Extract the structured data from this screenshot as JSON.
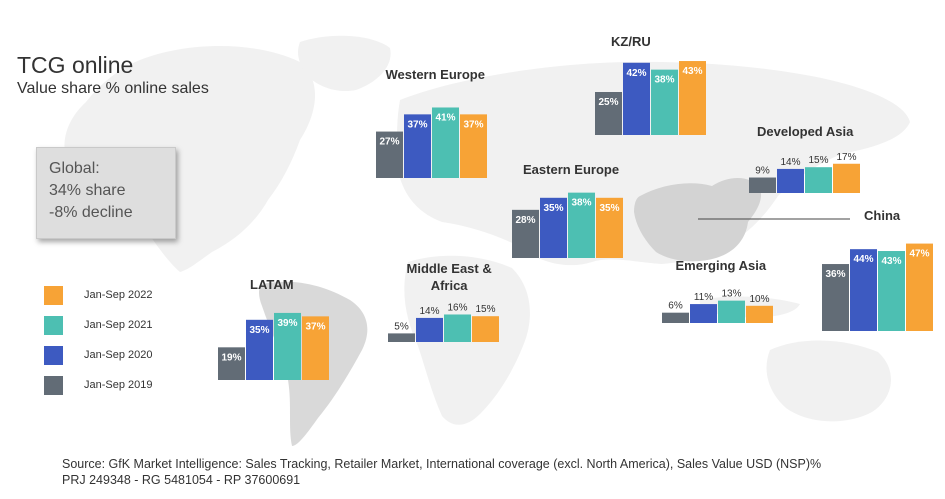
{
  "title": "TCG online",
  "subtitle": "Value share % online sales",
  "global_box": {
    "line1": "Global:",
    "line2": "34% share",
    "line3": "-8% decline"
  },
  "legend": [
    {
      "label": "Jan-Sep 2022",
      "color": "#f7a336"
    },
    {
      "label": "Jan-Sep 2021",
      "color": "#4dbfb2"
    },
    {
      "label": "Jan-Sep 2020",
      "color": "#3d5ac1"
    },
    {
      "label": "Jan-Sep 2019",
      "color": "#626c76"
    }
  ],
  "chart_data": {
    "type": "bar",
    "series_names": [
      "Jan-Sep 2019",
      "Jan-Sep 2020",
      "Jan-Sep 2021",
      "Jan-Sep 2022"
    ],
    "series_colors": [
      "#626c76",
      "#3d5ac1",
      "#4dbfb2",
      "#f7a336"
    ],
    "unit": "%",
    "regions": [
      {
        "name": "Western Europe",
        "values": [
          27,
          37,
          41,
          37
        ]
      },
      {
        "name": "KZ/RU",
        "values": [
          25,
          42,
          38,
          43
        ]
      },
      {
        "name": "Developed Asia",
        "values": [
          9,
          14,
          15,
          17
        ]
      },
      {
        "name": "Eastern Europe",
        "values": [
          28,
          35,
          38,
          35
        ]
      },
      {
        "name": "China",
        "values": [
          36,
          44,
          43,
          47
        ]
      },
      {
        "name": "Middle East & Africa",
        "values": [
          5,
          14,
          16,
          15
        ]
      },
      {
        "name": "Emerging Asia",
        "values": [
          6,
          11,
          13,
          10
        ]
      },
      {
        "name": "LATAM",
        "values": [
          19,
          35,
          39,
          37
        ]
      }
    ]
  },
  "source": {
    "line1": "Source: GfK Market Intelligence: Sales Tracking, Retailer Market, International coverage (excl. North America), Sales Value USD (NSP)%",
    "line2": "PRJ 249348 - RG 5481054 - RP 37600691"
  }
}
